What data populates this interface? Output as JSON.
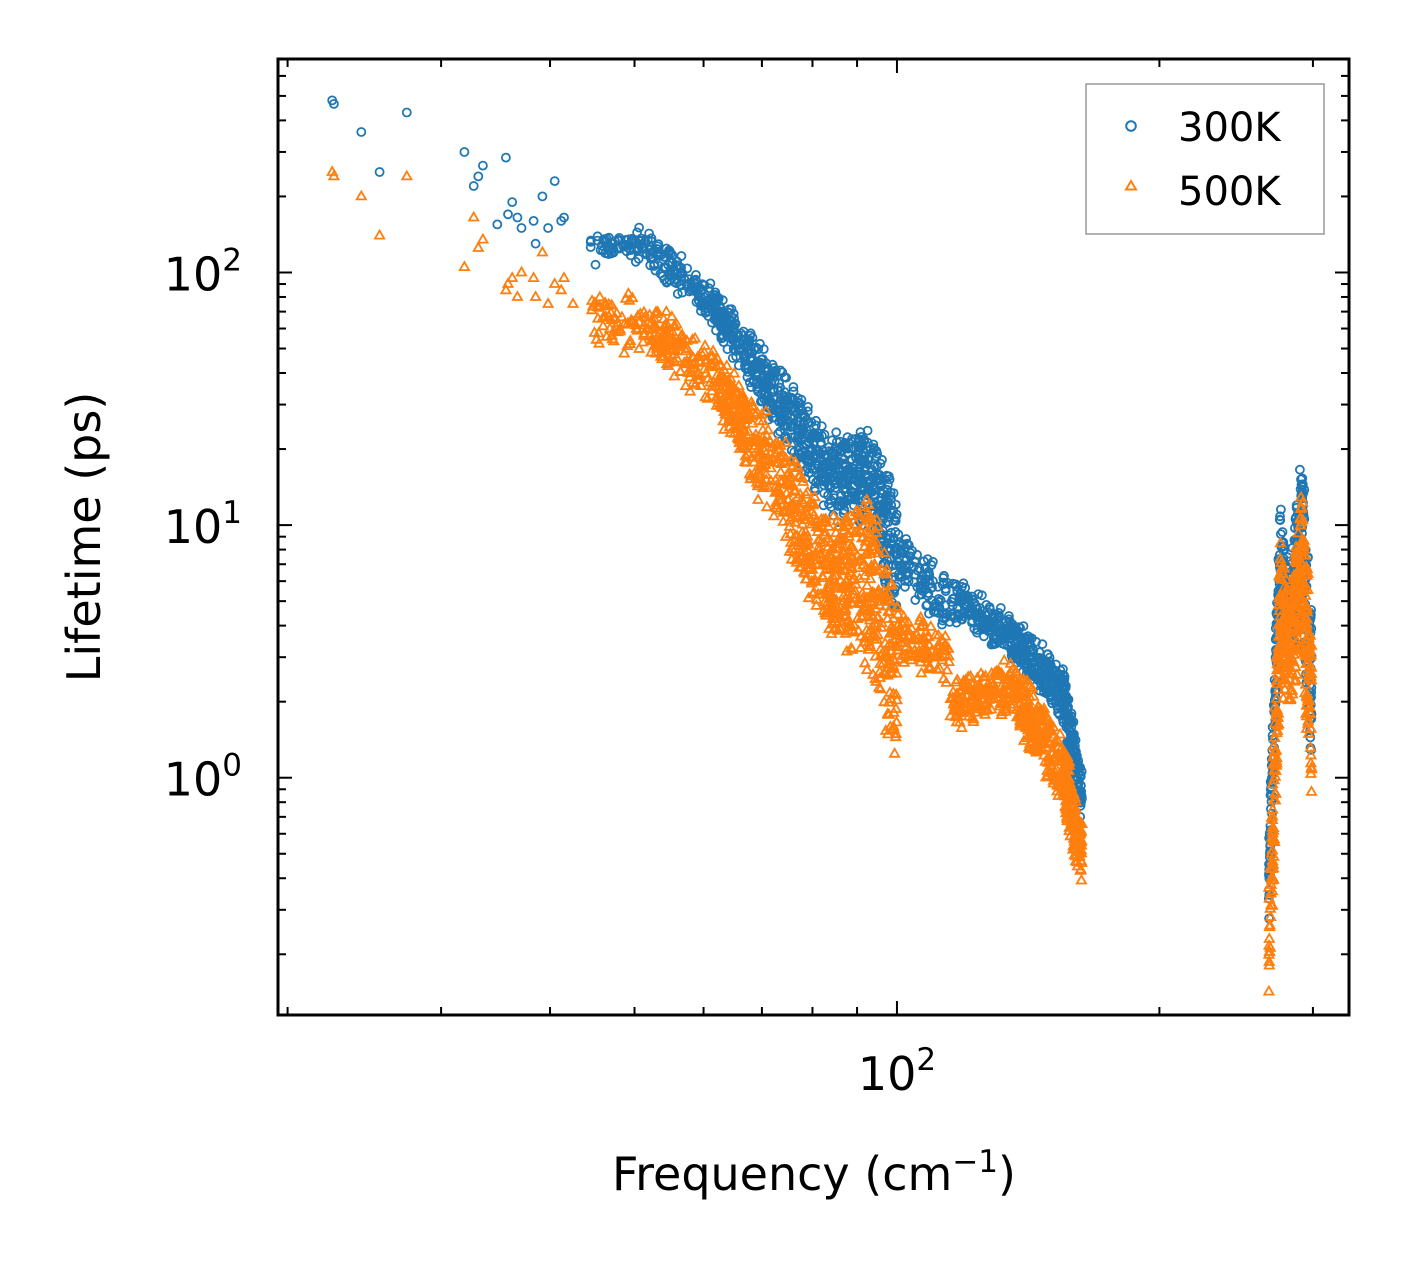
{
  "chart_data": {
    "type": "scatter",
    "title": "",
    "xlabel": "Frequency (cm",
    "xlabel_sup": "−1",
    "xlabel_suffix": ")",
    "ylabel": "Lifetime (ps)",
    "xscale": "log",
    "yscale": "log",
    "xlim": [
      19.5,
      330
    ],
    "ylim": [
      0.115,
      700
    ],
    "x_ticks": [
      {
        "base": "10",
        "exp": "2",
        "value": 100
      }
    ],
    "y_ticks": [
      {
        "base": "10",
        "exp": "0",
        "value": 1
      },
      {
        "base": "10",
        "exp": "1",
        "value": 10
      },
      {
        "base": "10",
        "exp": "2",
        "value": 100
      }
    ],
    "legend": {
      "position": "upper right",
      "entries": [
        "300K",
        "500K"
      ]
    },
    "colors": {
      "300K": "#1f77b4",
      "500K": "#ff7f0e"
    },
    "series": [
      {
        "name": "300K",
        "marker": "circle",
        "points": [
          [
            22.5,
            480
          ],
          [
            22.6,
            465
          ],
          [
            24.3,
            360
          ],
          [
            25.5,
            250
          ],
          [
            27.4,
            430
          ],
          [
            31.9,
            300
          ],
          [
            32.7,
            220
          ],
          [
            33.1,
            240
          ],
          [
            33.5,
            265
          ],
          [
            34.8,
            155
          ],
          [
            35.6,
            285
          ],
          [
            35.8,
            170
          ],
          [
            36.2,
            190
          ],
          [
            36.7,
            165
          ],
          [
            37.1,
            150
          ],
          [
            38.3,
            160
          ],
          [
            38.5,
            130
          ],
          [
            39.2,
            200
          ],
          [
            39.8,
            150
          ],
          [
            40.5,
            230
          ],
          [
            41.2,
            160
          ],
          [
            41.5,
            165
          ]
        ],
        "bands": [
          {
            "x": [
              44.5,
              52.0
            ],
            "y_lo": [
              140,
              110
            ],
            "y_hi": [
              110,
              155
            ],
            "count": 70,
            "jitter": 0.07
          },
          {
            "x": [
              52.0,
              62.0
            ],
            "y_lo": [
              110,
              65
            ],
            "y_hi": [
              140,
              80
            ],
            "count": 140,
            "jitter": 0.08
          },
          {
            "x": [
              62.0,
              73.0
            ],
            "y_lo": [
              65,
              25
            ],
            "y_hi": [
              80,
              40
            ],
            "count": 220,
            "jitter": 0.1
          },
          {
            "x": [
              73.0,
              84.0
            ],
            "y_lo": [
              25,
              12
            ],
            "y_hi": [
              40,
              20
            ],
            "count": 220,
            "jitter": 0.12
          },
          {
            "x": [
              84.0,
              93.0
            ],
            "y_lo": [
              12,
              11
            ],
            "y_hi": [
              20,
              22
            ],
            "count": 200,
            "jitter": 0.14
          },
          {
            "x": [
              93.0,
              100.0
            ],
            "y_lo": [
              11,
              4
            ],
            "y_hi": [
              22,
              12
            ],
            "count": 150,
            "jitter": 0.12
          },
          {
            "x": [
              100.0,
              115.0
            ],
            "y_lo": [
              6,
              4
            ],
            "y_hi": [
              9,
              6
            ],
            "count": 110,
            "jitter": 0.08
          },
          {
            "x": [
              115.0,
              135.0
            ],
            "y_lo": [
              4.5,
              3.2
            ],
            "y_hi": [
              6,
              4.2
            ],
            "count": 160,
            "jitter": 0.07
          },
          {
            "x": [
              135.0,
              155.0
            ],
            "y_lo": [
              3.2,
              1.8
            ],
            "y_hi": [
              4.2,
              2.6
            ],
            "count": 220,
            "jitter": 0.08
          },
          {
            "x": [
              155.0,
              163.0
            ],
            "y_lo": [
              1.8,
              0.7
            ],
            "y_hi": [
              2.6,
              1.0
            ],
            "count": 160,
            "jitter": 0.1
          },
          {
            "x": [
              267.0,
              275.0
            ],
            "y_lo": [
              0.28,
              4.0
            ],
            "y_hi": [
              0.6,
              11
            ],
            "count": 110,
            "jitter": 0.2
          },
          {
            "x": [
              275.0,
              283.0
            ],
            "y_lo": [
              4.0,
              3.0
            ],
            "y_hi": [
              11,
              6
            ],
            "count": 90,
            "jitter": 0.15
          },
          {
            "x": [
              283.0,
              291.0
            ],
            "y_lo": [
              3.0,
              5.0
            ],
            "y_hi": [
              6,
              18
            ],
            "count": 90,
            "jitter": 0.15
          },
          {
            "x": [
              291.0,
              299.0
            ],
            "y_lo": [
              5.0,
              1.3
            ],
            "y_hi": [
              18,
              4
            ],
            "count": 110,
            "jitter": 0.18
          }
        ]
      },
      {
        "name": "500K",
        "marker": "triangle",
        "points": [
          [
            22.5,
            250
          ],
          [
            22.6,
            240
          ],
          [
            24.3,
            200
          ],
          [
            25.5,
            140
          ],
          [
            27.4,
            240
          ],
          [
            31.9,
            105
          ],
          [
            32.7,
            165
          ],
          [
            33.1,
            125
          ],
          [
            33.5,
            135
          ],
          [
            35.6,
            85
          ],
          [
            35.8,
            90
          ],
          [
            36.2,
            95
          ],
          [
            36.7,
            80
          ],
          [
            37.1,
            100
          ],
          [
            38.3,
            95
          ],
          [
            38.5,
            80
          ],
          [
            39.2,
            120
          ],
          [
            39.8,
            75
          ],
          [
            40.5,
            90
          ],
          [
            41.2,
            85
          ],
          [
            41.5,
            95
          ],
          [
            42.5,
            75
          ]
        ],
        "bands": [
          {
            "x": [
              44.5,
              52.0
            ],
            "y_lo": [
              55,
              50
            ],
            "y_hi": [
              80,
              75
            ],
            "count": 70,
            "jitter": 0.08
          },
          {
            "x": [
              52.0,
              62.0
            ],
            "y_lo": [
              50,
              30
            ],
            "y_hi": [
              75,
              45
            ],
            "count": 140,
            "jitter": 0.09
          },
          {
            "x": [
              62.0,
              73.0
            ],
            "y_lo": [
              30,
              10
            ],
            "y_hi": [
              45,
              22
            ],
            "count": 220,
            "jitter": 0.12
          },
          {
            "x": [
              73.0,
              84.0
            ],
            "y_lo": [
              10,
              4
            ],
            "y_hi": [
              22,
              9
            ],
            "count": 220,
            "jitter": 0.14
          },
          {
            "x": [
              84.0,
              93.0
            ],
            "y_lo": [
              4,
              3
            ],
            "y_hi": [
              9,
              12
            ],
            "count": 200,
            "jitter": 0.16
          },
          {
            "x": [
              93.0,
              100.0
            ],
            "y_lo": [
              3,
              1.2
            ],
            "y_hi": [
              12,
              5
            ],
            "count": 150,
            "jitter": 0.15
          },
          {
            "x": [
              100.0,
              115.0
            ],
            "y_lo": [
              3.0,
              2.5
            ],
            "y_hi": [
              4.5,
              3.5
            ],
            "count": 110,
            "jitter": 0.09
          },
          {
            "x": [
              115.0,
              135.0
            ],
            "y_lo": [
              1.6,
              1.9
            ],
            "y_hi": [
              2.2,
              2.8
            ],
            "count": 160,
            "jitter": 0.09
          },
          {
            "x": [
              135.0,
              155.0
            ],
            "y_lo": [
              1.9,
              0.8
            ],
            "y_hi": [
              2.8,
              1.4
            ],
            "count": 220,
            "jitter": 0.1
          },
          {
            "x": [
              155.0,
              163.0
            ],
            "y_lo": [
              0.8,
              0.4
            ],
            "y_hi": [
              1.4,
              0.6
            ],
            "count": 160,
            "jitter": 0.12
          },
          {
            "x": [
              267.0,
              275.0
            ],
            "y_lo": [
              0.14,
              2.5
            ],
            "y_hi": [
              0.3,
              8
            ],
            "count": 110,
            "jitter": 0.22
          },
          {
            "x": [
              275.0,
              283.0
            ],
            "y_lo": [
              2.5,
              2.2
            ],
            "y_hi": [
              8,
              5
            ],
            "count": 90,
            "jitter": 0.16
          },
          {
            "x": [
              283.0,
              291.0
            ],
            "y_lo": [
              2.2,
              3.5
            ],
            "y_hi": [
              5,
              14
            ],
            "count": 90,
            "jitter": 0.16
          },
          {
            "x": [
              291.0,
              299.0
            ],
            "y_lo": [
              3.5,
              1.0
            ],
            "y_hi": [
              14,
              3
            ],
            "count": 110,
            "jitter": 0.2
          }
        ]
      }
    ]
  }
}
